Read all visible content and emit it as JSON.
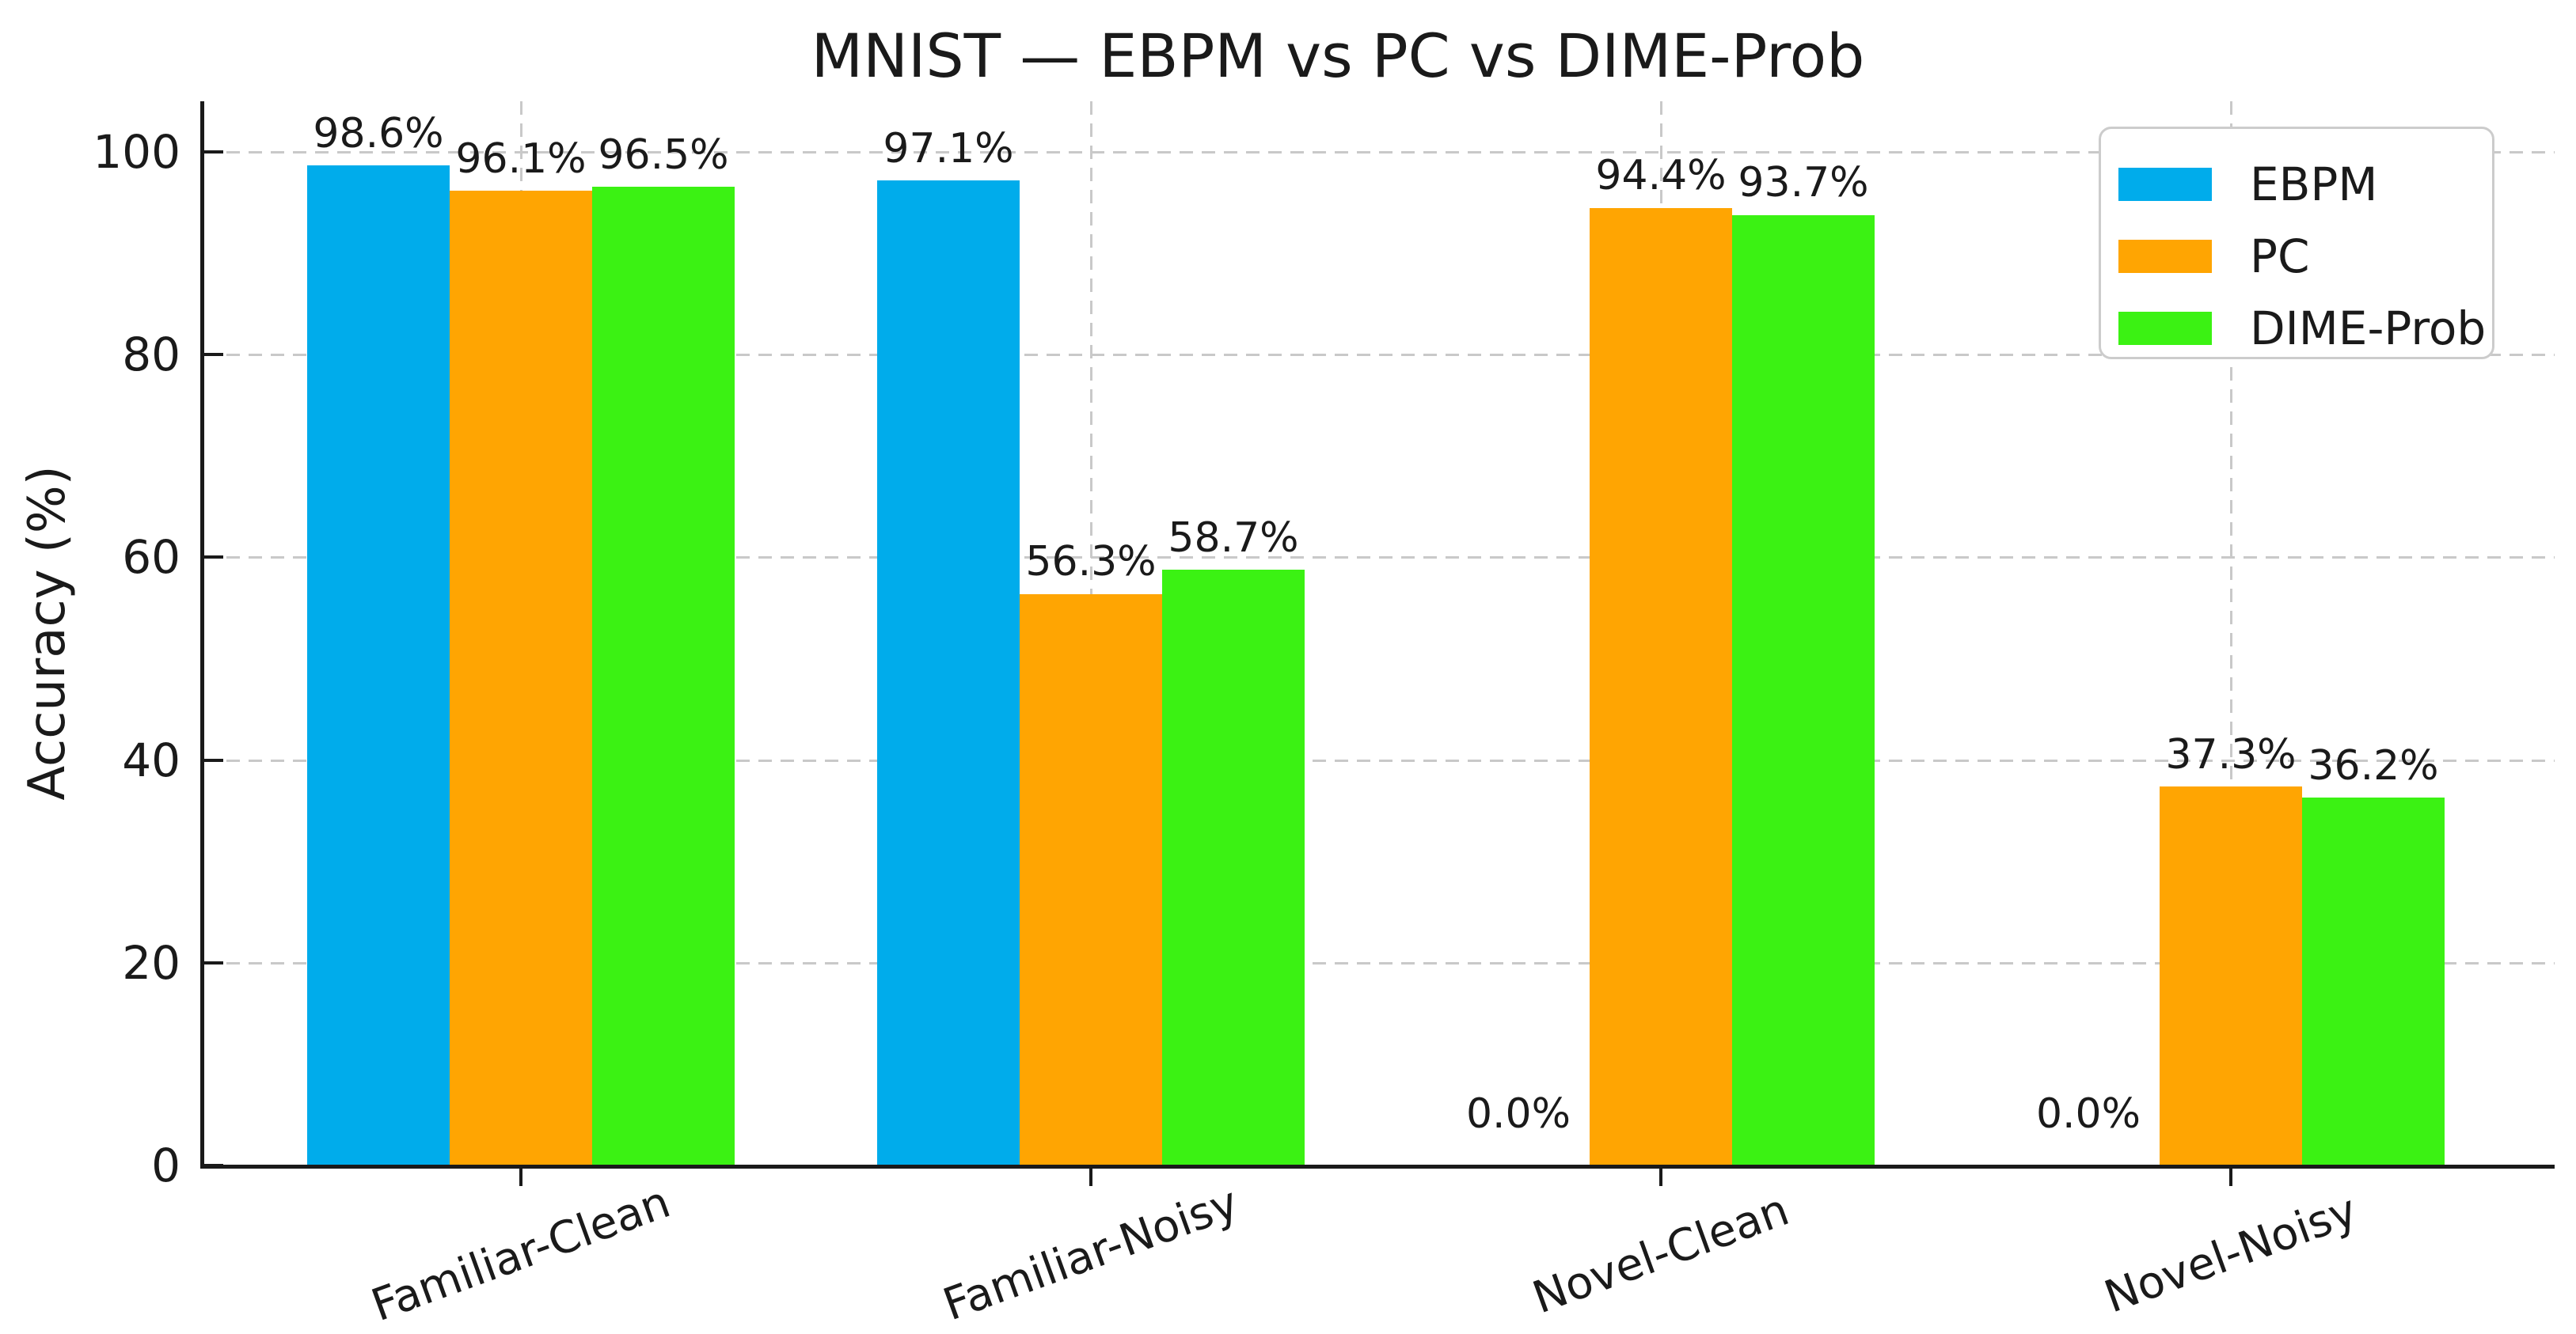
{
  "chart_data": {
    "type": "bar",
    "title": "MNIST — EBPM vs PC vs DIME-Prob",
    "ylabel": "Accuracy (%)",
    "xlabel": "",
    "categories": [
      "Familiar-Clean",
      "Familiar-Noisy",
      "Novel-Clean",
      "Novel-Noisy"
    ],
    "series": [
      {
        "name": "EBPM",
        "color": "#00ACEB",
        "values": [
          98.6,
          97.1,
          0.0,
          0.0
        ],
        "labels": [
          "98.6%",
          "97.1%",
          "0.0%",
          "0.0%"
        ]
      },
      {
        "name": "PC",
        "color": "#FFA502",
        "values": [
          96.1,
          56.3,
          94.4,
          37.3
        ],
        "labels": [
          "96.1%",
          "56.3%",
          "94.4%",
          "37.3%"
        ]
      },
      {
        "name": "DIME-Prob",
        "color": "#3BF213",
        "values": [
          96.5,
          58.7,
          93.7,
          36.2
        ],
        "labels": [
          "96.5%",
          "58.7%",
          "93.7%",
          "36.2%"
        ]
      }
    ],
    "yticks": [
      0,
      20,
      40,
      60,
      80,
      100
    ],
    "ytick_labels": [
      "0",
      "20",
      "40",
      "60",
      "80",
      "100"
    ],
    "ylim": [
      0,
      105
    ],
    "grid": "dashed-both-axes",
    "x_tick_rotation_deg": 20,
    "legend": {
      "position": "upper-right",
      "entries": [
        "EBPM",
        "PC",
        "DIME-Prob"
      ]
    },
    "colors": {
      "axis": "#1a1a1a",
      "grid": "#c9c9c9",
      "text": "#1a1a1a",
      "legend_border": "#cccccc",
      "background": "#ffffff"
    }
  }
}
